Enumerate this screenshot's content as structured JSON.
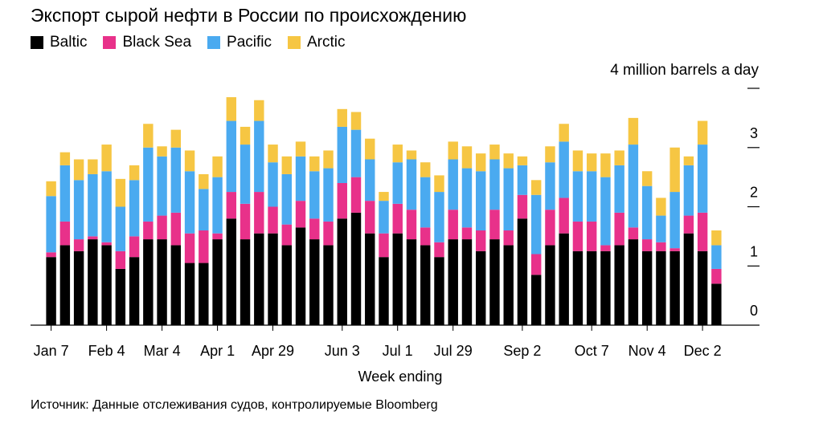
{
  "chart_data": {
    "type": "bar",
    "stacked": true,
    "title": "Экспорт сырой нефти в России по происхождению",
    "unit_label": "4 million barrels a day",
    "xlabel": "Week ending",
    "source": "Источник: Данные отслеживания судов, контролируемые Bloomberg",
    "ylim": [
      0,
      4
    ],
    "yticks": [
      "0",
      "1",
      "2",
      "3"
    ],
    "xtick_labels": [
      {
        "label": "Jan 7",
        "index": 0
      },
      {
        "label": "Feb 4",
        "index": 4
      },
      {
        "label": "Mar 4",
        "index": 8
      },
      {
        "label": "Apr 1",
        "index": 12
      },
      {
        "label": "Apr 29",
        "index": 16
      },
      {
        "label": "Jun 3",
        "index": 21
      },
      {
        "label": "Jul 1",
        "index": 25
      },
      {
        "label": "Jul 29",
        "index": 29
      },
      {
        "label": "Sep 2",
        "index": 34
      },
      {
        "label": "Oct 7",
        "index": 39
      },
      {
        "label": "Nov 4",
        "index": 43
      },
      {
        "label": "Dec 2",
        "index": 47
      }
    ],
    "legend_position": "top-left",
    "grid": false,
    "colors": {
      "Baltic": "#000000",
      "Black Sea": "#e8318a",
      "Pacific": "#4aaaf0",
      "Arctic": "#f6c643"
    },
    "series": [
      {
        "name": "Baltic",
        "values": [
          1.15,
          1.35,
          1.25,
          1.45,
          1.35,
          0.95,
          1.15,
          1.45,
          1.45,
          1.35,
          1.05,
          1.05,
          1.45,
          1.8,
          1.45,
          1.55,
          1.55,
          1.35,
          1.65,
          1.45,
          1.35,
          1.8,
          1.9,
          1.55,
          1.15,
          1.55,
          1.45,
          1.35,
          1.15,
          1.45,
          1.45,
          1.25,
          1.45,
          1.35,
          1.8,
          0.85,
          1.35,
          1.55,
          1.25,
          1.25,
          1.25,
          1.35,
          1.45,
          1.25,
          1.25,
          1.25,
          1.55,
          1.25,
          0.7
        ]
      },
      {
        "name": "Black Sea",
        "values": [
          0.08,
          0.4,
          0.2,
          0.05,
          0.05,
          0.3,
          0.35,
          0.3,
          0.4,
          0.55,
          0.5,
          0.55,
          0.1,
          0.45,
          0.6,
          0.7,
          0.45,
          0.35,
          0.45,
          0.35,
          0.4,
          0.6,
          0.6,
          0.55,
          0.4,
          0.5,
          0.5,
          0.3,
          0.25,
          0.5,
          0.2,
          0.35,
          0.5,
          0.25,
          0.4,
          0.35,
          0.6,
          0.6,
          0.5,
          0.5,
          0.1,
          0.55,
          0.2,
          0.2,
          0.15,
          0.05,
          0.3,
          0.65,
          0.25
        ]
      },
      {
        "name": "Pacific",
        "values": [
          0.95,
          0.95,
          1.0,
          1.05,
          1.2,
          0.75,
          0.95,
          1.25,
          1.0,
          1.1,
          1.05,
          0.7,
          0.95,
          1.2,
          1.0,
          1.2,
          0.75,
          0.85,
          0.75,
          0.8,
          0.9,
          0.95,
          0.8,
          0.7,
          0.55,
          0.7,
          0.85,
          0.85,
          0.85,
          0.85,
          1.0,
          1.0,
          0.85,
          1.05,
          0.5,
          1.0,
          0.8,
          0.95,
          0.85,
          0.85,
          1.15,
          0.8,
          1.4,
          0.9,
          0.45,
          0.95,
          0.85,
          1.15,
          0.4
        ]
      },
      {
        "name": "Arctic",
        "values": [
          0.25,
          0.22,
          0.35,
          0.25,
          0.45,
          0.47,
          0.25,
          0.4,
          0.17,
          0.3,
          0.35,
          0.25,
          0.35,
          0.4,
          0.3,
          0.35,
          0.3,
          0.3,
          0.25,
          0.25,
          0.3,
          0.3,
          0.3,
          0.35,
          0.15,
          0.3,
          0.15,
          0.25,
          0.28,
          0.3,
          0.37,
          0.3,
          0.25,
          0.25,
          0.15,
          0.25,
          0.27,
          0.3,
          0.35,
          0.3,
          0.4,
          0.25,
          0.45,
          0.25,
          0.3,
          0.75,
          0.15,
          0.4,
          0.25
        ]
      }
    ]
  }
}
